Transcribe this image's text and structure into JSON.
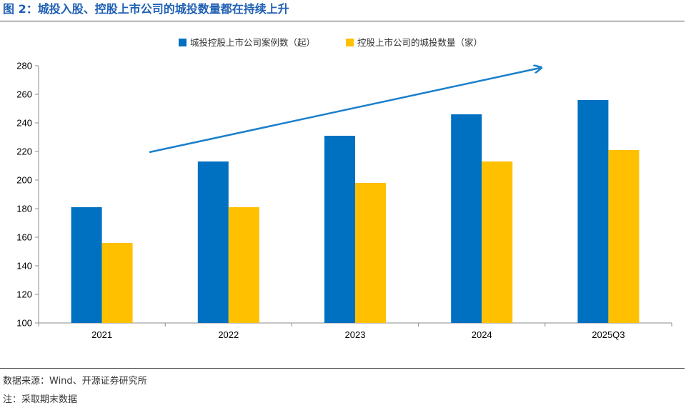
{
  "figure": {
    "title": "图 2：城投入股、控股上市公司的城投数量都在持续上升"
  },
  "footer": {
    "source": "数据来源：Wind、开源证券研究所",
    "note": "注：采取期末数据"
  },
  "colors": {
    "title": "#1f5fb4",
    "series_blue": "#0070c0",
    "series_gold": "#ffc000",
    "arrow": "#1a7fcb"
  },
  "chart_data": {
    "type": "bar",
    "categories": [
      "2021",
      "2022",
      "2023",
      "2024",
      "2025Q3"
    ],
    "series": [
      {
        "name": "城投控股上市公司案例数（起）",
        "values": [
          181,
          213,
          231,
          246,
          256
        ],
        "color": "#0070c0"
      },
      {
        "name": "控股上市公司的城投数量（家）",
        "values": [
          156,
          181,
          198,
          213,
          221
        ],
        "color": "#ffc000"
      }
    ],
    "ylim": [
      100,
      280
    ],
    "yticks": [
      100,
      120,
      140,
      160,
      180,
      200,
      220,
      240,
      260,
      280
    ],
    "grid": false,
    "legend_position": "top-center",
    "annotations": [
      {
        "kind": "trend-arrow",
        "label": ""
      }
    ]
  }
}
